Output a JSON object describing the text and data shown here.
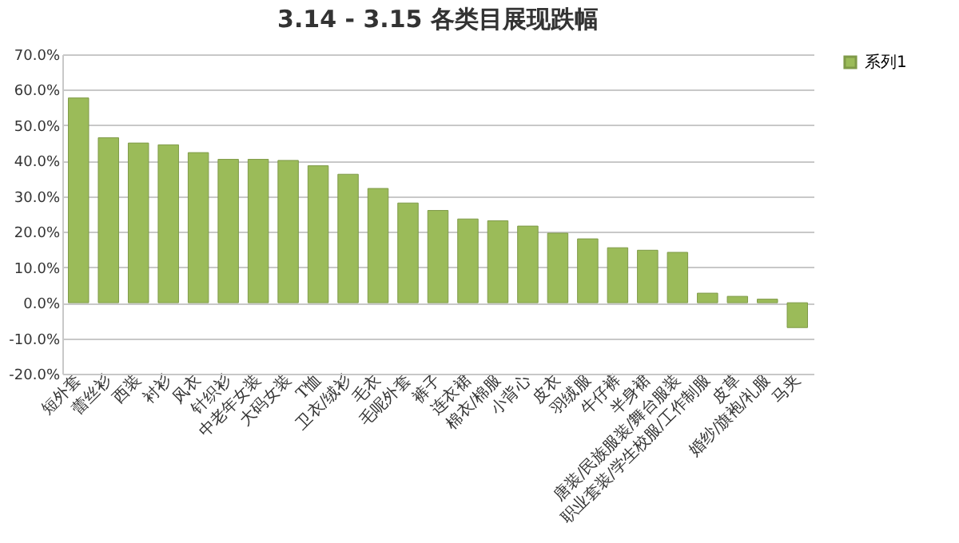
{
  "chart_data": {
    "type": "bar",
    "title": "3.14 - 3.15 各类目展现跌幅",
    "categories": [
      "短外套",
      "蕾丝衫",
      "西装",
      "衬衫",
      "风衣",
      "针织衫",
      "中老年女装",
      "大码女装",
      "T恤",
      "卫衣/绒衫",
      "毛衣",
      "毛呢外套",
      "裤子",
      "连衣裙",
      "棉衣/棉服",
      "小背心",
      "皮衣",
      "羽绒服",
      "牛仔裤",
      "半身裙",
      "唐装/民族服装/舞台服装",
      "职业套装/学生校服/工作制服",
      "皮草",
      "婚纱/旗袍/礼服",
      "马夹"
    ],
    "series": [
      {
        "name": "系列1",
        "color": "#9bbb59",
        "values": [
          57.7,
          46.5,
          45.0,
          44.5,
          42.3,
          40.4,
          40.4,
          40.1,
          38.6,
          36.2,
          32.2,
          28.1,
          26.0,
          23.6,
          23.1,
          21.6,
          19.6,
          18.0,
          15.5,
          14.8,
          14.2,
          2.7,
          1.8,
          1.0,
          -7.0
        ]
      }
    ],
    "ylim": [
      -20,
      70
    ],
    "yticks": [
      {
        "value": -20,
        "label": "-20.0%"
      },
      {
        "value": -10,
        "label": "-10.0%"
      },
      {
        "value": 0,
        "label": "0.0%"
      },
      {
        "value": 10,
        "label": "10.0%"
      },
      {
        "value": 20,
        "label": "20.0%"
      },
      {
        "value": 30,
        "label": "30.0%"
      },
      {
        "value": 40,
        "label": "40.0%"
      },
      {
        "value": 50,
        "label": "50.0%"
      },
      {
        "value": 60,
        "label": "60.0%"
      },
      {
        "value": 70,
        "label": "70.0%"
      }
    ],
    "grid": "y",
    "legend": "right"
  }
}
